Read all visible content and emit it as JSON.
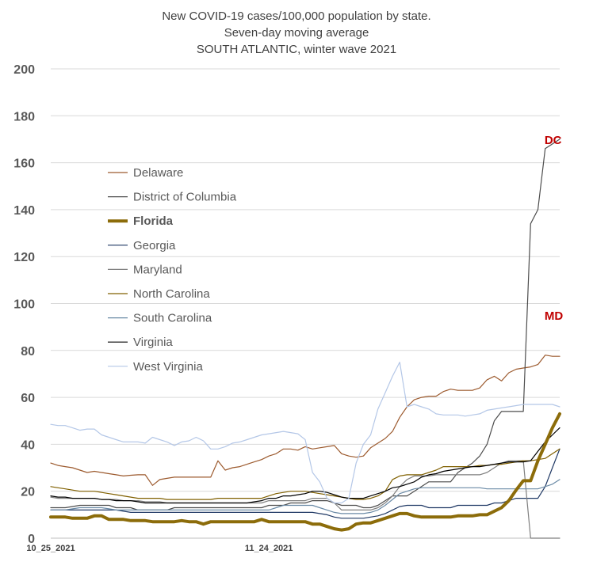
{
  "chart_data": {
    "type": "line",
    "title": [
      "New COVID-19 cases/100,000 population by state.",
      "Seven-day moving average",
      "SOUTH ATLANTIC, winter wave 2021"
    ],
    "ylim": [
      0,
      200
    ],
    "yticks": [
      0,
      20,
      40,
      60,
      80,
      100,
      120,
      140,
      160,
      180,
      200
    ],
    "x_count": 71,
    "xtick_labels": [
      {
        "index": 0,
        "label": "10_25_2021"
      },
      {
        "index": 30,
        "label": "11_24_2021"
      }
    ],
    "grid": true,
    "legend_position": "upper-left",
    "series": [
      {
        "name": "Delaware",
        "color": "#9c5a2e",
        "width": 1.2,
        "bold": false,
        "values": [
          32,
          31,
          30.5,
          30,
          29,
          28,
          28.5,
          28,
          27.5,
          27,
          26.5,
          26.8,
          27,
          27,
          22.5,
          25,
          25.5,
          26,
          26,
          26,
          26,
          26,
          26,
          33,
          29,
          30,
          30.5,
          31.5,
          32.5,
          33.5,
          35,
          36,
          38,
          38,
          37.5,
          39,
          38,
          38.5,
          39,
          39.5,
          36,
          35,
          34.5,
          35,
          38.5,
          40.5,
          42.5,
          45.5,
          51.5,
          56,
          59,
          60,
          60.5,
          60.5,
          62.5,
          63.5,
          63,
          63,
          63,
          64,
          67.5,
          69,
          67,
          70.5,
          72,
          72.5,
          73,
          74,
          78,
          77.5,
          77.5
        ]
      },
      {
        "name": "District of Columbia",
        "color": "#4d4d4d",
        "width": 1.2,
        "bold": false,
        "values": [
          13,
          13,
          13,
          13.5,
          14,
          14,
          14,
          14,
          14,
          13,
          13,
          13,
          12,
          12,
          12,
          12,
          12,
          13,
          13,
          13,
          13,
          13,
          13,
          13,
          13,
          13,
          13,
          13,
          13,
          13,
          14,
          14,
          14,
          15,
          15,
          15,
          16,
          16,
          16,
          15,
          14,
          14,
          14,
          13,
          13,
          14,
          16,
          18,
          18,
          18,
          20,
          22,
          24,
          24,
          24,
          24,
          28,
          30,
          32,
          35,
          40,
          50,
          54,
          54,
          54,
          54,
          134,
          140,
          166,
          168,
          170
        ]
      },
      {
        "name": "Florida",
        "color": "#8c6c0a",
        "width": 4,
        "bold": true,
        "values": [
          9,
          9,
          9,
          8.5,
          8.5,
          8.5,
          9.5,
          9.5,
          8,
          8,
          8,
          7.5,
          7.5,
          7.5,
          7,
          7,
          7,
          7,
          7.5,
          7,
          7,
          6,
          7,
          7,
          7,
          7,
          7,
          7,
          7,
          8,
          7,
          7,
          7,
          7,
          7,
          7,
          6,
          6,
          5,
          4,
          3.5,
          4,
          6,
          6.5,
          6.5,
          7.5,
          8.5,
          9.5,
          10.5,
          10.5,
          9.5,
          9,
          9,
          9,
          9,
          9,
          9.5,
          9.5,
          9.5,
          10,
          10,
          11.5,
          13,
          16,
          20.5,
          24.5,
          24.5,
          33,
          40,
          47,
          53
        ]
      },
      {
        "name": "Georgia",
        "color": "#1f3864",
        "width": 1.2,
        "bold": false,
        "values": [
          12,
          12,
          12,
          12,
          12,
          12,
          12,
          12,
          12,
          12,
          11.5,
          11,
          11,
          11,
          11,
          11,
          11,
          11,
          11,
          11,
          11,
          11,
          11,
          11,
          11,
          11,
          11,
          11,
          11,
          11,
          11,
          11,
          11,
          11,
          11,
          11,
          11,
          10.5,
          10,
          9,
          8.5,
          8.5,
          8.5,
          8.5,
          9,
          9.5,
          10.5,
          12,
          13.5,
          14,
          14,
          14,
          13,
          13,
          13,
          13,
          14,
          14,
          14,
          14,
          14,
          15,
          15,
          16,
          17,
          17,
          17,
          17,
          22,
          30,
          38
        ]
      },
      {
        "name": "Maryland",
        "color": "#7f7f7f",
        "width": 1.2,
        "bold": false,
        "values": [
          17.5,
          17,
          17,
          17,
          17,
          17,
          17,
          16.5,
          16.5,
          16.5,
          16,
          16,
          16,
          15.5,
          15.5,
          15.5,
          15,
          15,
          15,
          15,
          15,
          15,
          15,
          15,
          15,
          15,
          15,
          15,
          15,
          15,
          16,
          16,
          16,
          16,
          16,
          16,
          17,
          17,
          17,
          15,
          12,
          12,
          12,
          12,
          12,
          13,
          15,
          18,
          22,
          25,
          26.5,
          26.5,
          26.5,
          27,
          27,
          27,
          27,
          27,
          27,
          27,
          28,
          30,
          32,
          33,
          33,
          33,
          0,
          0,
          0,
          0,
          0
        ]
      },
      {
        "name": "North Carolina",
        "color": "#806000",
        "width": 1.2,
        "bold": false,
        "values": [
          22,
          21.5,
          21,
          20.5,
          20,
          20,
          20,
          19.5,
          19,
          18.5,
          18,
          17.5,
          17,
          17,
          17,
          17,
          16.5,
          16.5,
          16.5,
          16.5,
          16.5,
          16.5,
          16.5,
          17,
          17,
          17,
          17,
          17,
          17,
          17,
          18,
          19,
          19.5,
          20,
          20,
          20,
          19.5,
          19,
          18.5,
          18,
          17.5,
          17,
          16.5,
          16.5,
          17,
          18,
          20,
          25,
          26.5,
          27,
          27,
          27,
          28,
          29,
          30.5,
          30.5,
          30.5,
          30.5,
          30.5,
          31,
          31,
          31.5,
          31.5,
          32,
          32.5,
          33,
          33,
          33.5,
          34,
          36,
          38
        ]
      },
      {
        "name": "South Carolina",
        "color": "#6a8aa6",
        "width": 1.2,
        "bold": false,
        "values": [
          12,
          12,
          12,
          12.5,
          13,
          13,
          13,
          13,
          12.5,
          12,
          12,
          12,
          12,
          12,
          12,
          12,
          12,
          12,
          12,
          12,
          12,
          12,
          12,
          12,
          12,
          12,
          12,
          12,
          12,
          12,
          12,
          13,
          14,
          14,
          14,
          14,
          14,
          13,
          12,
          11,
          10.5,
          10.5,
          10.5,
          10.5,
          11,
          12,
          14,
          16.5,
          19,
          20,
          21,
          21.5,
          21.5,
          21.5,
          21.5,
          21.5,
          21.5,
          21.5,
          21.5,
          21.5,
          21,
          21,
          21,
          21,
          21,
          21,
          21,
          21,
          22,
          23,
          25
        ]
      },
      {
        "name": "Virginia",
        "color": "#000000",
        "width": 1.2,
        "bold": false,
        "values": [
          18,
          17.5,
          17.5,
          17,
          17,
          17,
          17,
          16.5,
          16.5,
          16,
          16,
          16,
          15.5,
          15,
          15,
          15,
          15,
          15,
          15,
          15,
          15,
          15,
          15,
          15,
          15,
          15,
          15,
          15,
          15.5,
          16,
          17,
          17,
          18,
          18,
          18.5,
          19,
          20,
          20,
          19.5,
          18.5,
          17.5,
          17,
          17,
          17,
          18,
          19,
          20,
          21.5,
          22,
          23,
          24,
          26,
          27,
          27.5,
          28.5,
          29,
          29.5,
          30,
          30.5,
          30.5,
          31,
          31.5,
          32,
          32.5,
          32.5,
          32.5,
          33,
          37,
          41,
          44,
          47
        ]
      },
      {
        "name": "West Virginia",
        "color": "#b4c7e7",
        "width": 1.2,
        "bold": false,
        "values": [
          48.5,
          48,
          48,
          47,
          46,
          46.5,
          46.5,
          44,
          43,
          42,
          41,
          41,
          41,
          40.5,
          43,
          42,
          41,
          39.5,
          41,
          41.5,
          43,
          41.5,
          38,
          38,
          39,
          40.5,
          41,
          42,
          43,
          44,
          44.5,
          45,
          45.5,
          45,
          44.5,
          42,
          28,
          24,
          17,
          15,
          15,
          17,
          32,
          40,
          44,
          55,
          62,
          69,
          75,
          56,
          57,
          56,
          55,
          53,
          52.5,
          52.5,
          52.5,
          52,
          52.5,
          53,
          54.5,
          55,
          55.5,
          56,
          56.5,
          57,
          57,
          57,
          57,
          57,
          56
        ]
      }
    ],
    "annotations": [
      {
        "text": "DC",
        "x": 69,
        "y": 166,
        "color": "#c00000"
      },
      {
        "text": "MD",
        "x": 69,
        "y": 91,
        "color": "#c00000"
      }
    ]
  }
}
